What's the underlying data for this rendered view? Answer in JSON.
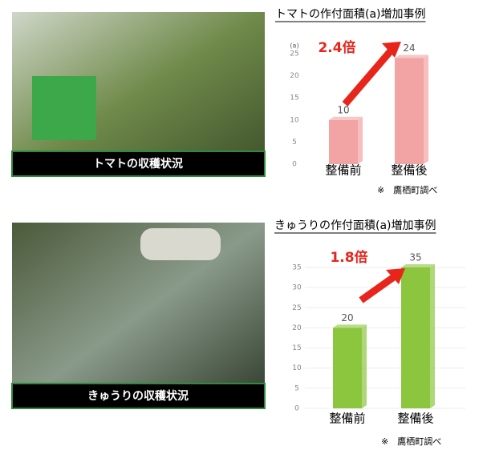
{
  "photos": [
    {
      "caption": "トマトの収穫状況"
    },
    {
      "caption": "きゅうりの収穫状況"
    }
  ],
  "chart_data": [
    {
      "type": "bar",
      "title": "トマトの作付面積(a)増加事例",
      "unit_label": "(a)",
      "annotation": "2.4倍",
      "note": "※　鷹栖町調べ",
      "categories": [
        "整備前",
        "整備後"
      ],
      "values": [
        10,
        24
      ],
      "color": "#f2a3a3",
      "ylim": [
        0,
        25
      ],
      "yticks": [
        0,
        5,
        10,
        15,
        20,
        25
      ],
      "grid": false
    },
    {
      "type": "bar",
      "title": "きゅうりの作付面積(a)増加事例",
      "annotation": "1.8倍",
      "note": "※　鷹栖町調べ",
      "categories": [
        "整備前",
        "整備後"
      ],
      "values": [
        20,
        35
      ],
      "color": "#8cc63e",
      "ylim": [
        0,
        35
      ],
      "yticks": [
        0,
        5,
        10,
        15,
        20,
        25,
        30,
        35
      ],
      "grid": true
    }
  ]
}
